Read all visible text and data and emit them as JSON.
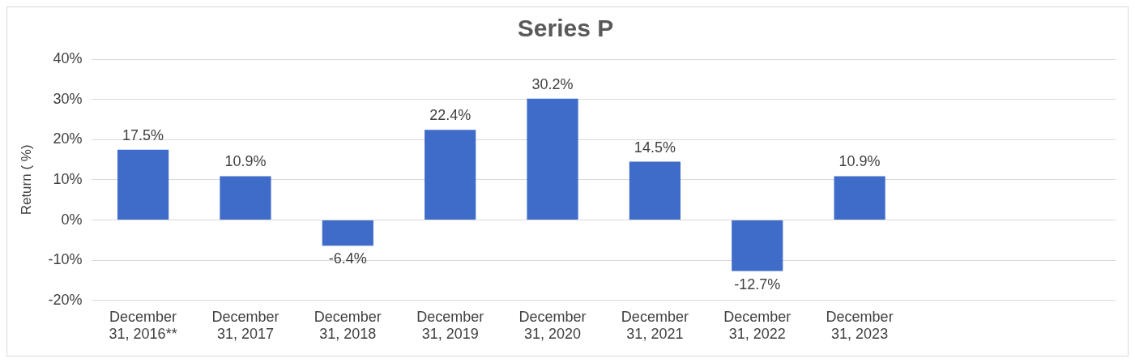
{
  "chart_data": {
    "type": "bar",
    "title": "Series P",
    "ylabel": "Return ( %)",
    "categories": [
      "December 31, 2016**",
      "December 31, 2017",
      "December 31, 2018",
      "December 31, 2019",
      "December 31, 2020",
      "December 31, 2021",
      "December 31, 2022",
      "December 31, 2023",
      null,
      null
    ],
    "values": [
      17.5,
      10.9,
      -6.4,
      22.4,
      30.2,
      14.5,
      -12.7,
      10.9,
      null,
      null
    ],
    "value_labels": [
      "17.5%",
      "10.9%",
      "-6.4%",
      "22.4%",
      "30.2%",
      "14.5%",
      "-12.7%",
      "10.9%",
      null,
      null
    ],
    "color": "#3f6cc9",
    "ylim": [
      -20,
      40
    ],
    "yticks": [
      {
        "value": -20,
        "label": "-20%"
      },
      {
        "value": -10,
        "label": "-10%"
      },
      {
        "value": 0,
        "label": "0%"
      },
      {
        "value": 10,
        "label": "10%"
      },
      {
        "value": 20,
        "label": "20%"
      },
      {
        "value": 30,
        "label": "30%"
      },
      {
        "value": 40,
        "label": "40%"
      }
    ],
    "grid": "y",
    "legend": false
  }
}
